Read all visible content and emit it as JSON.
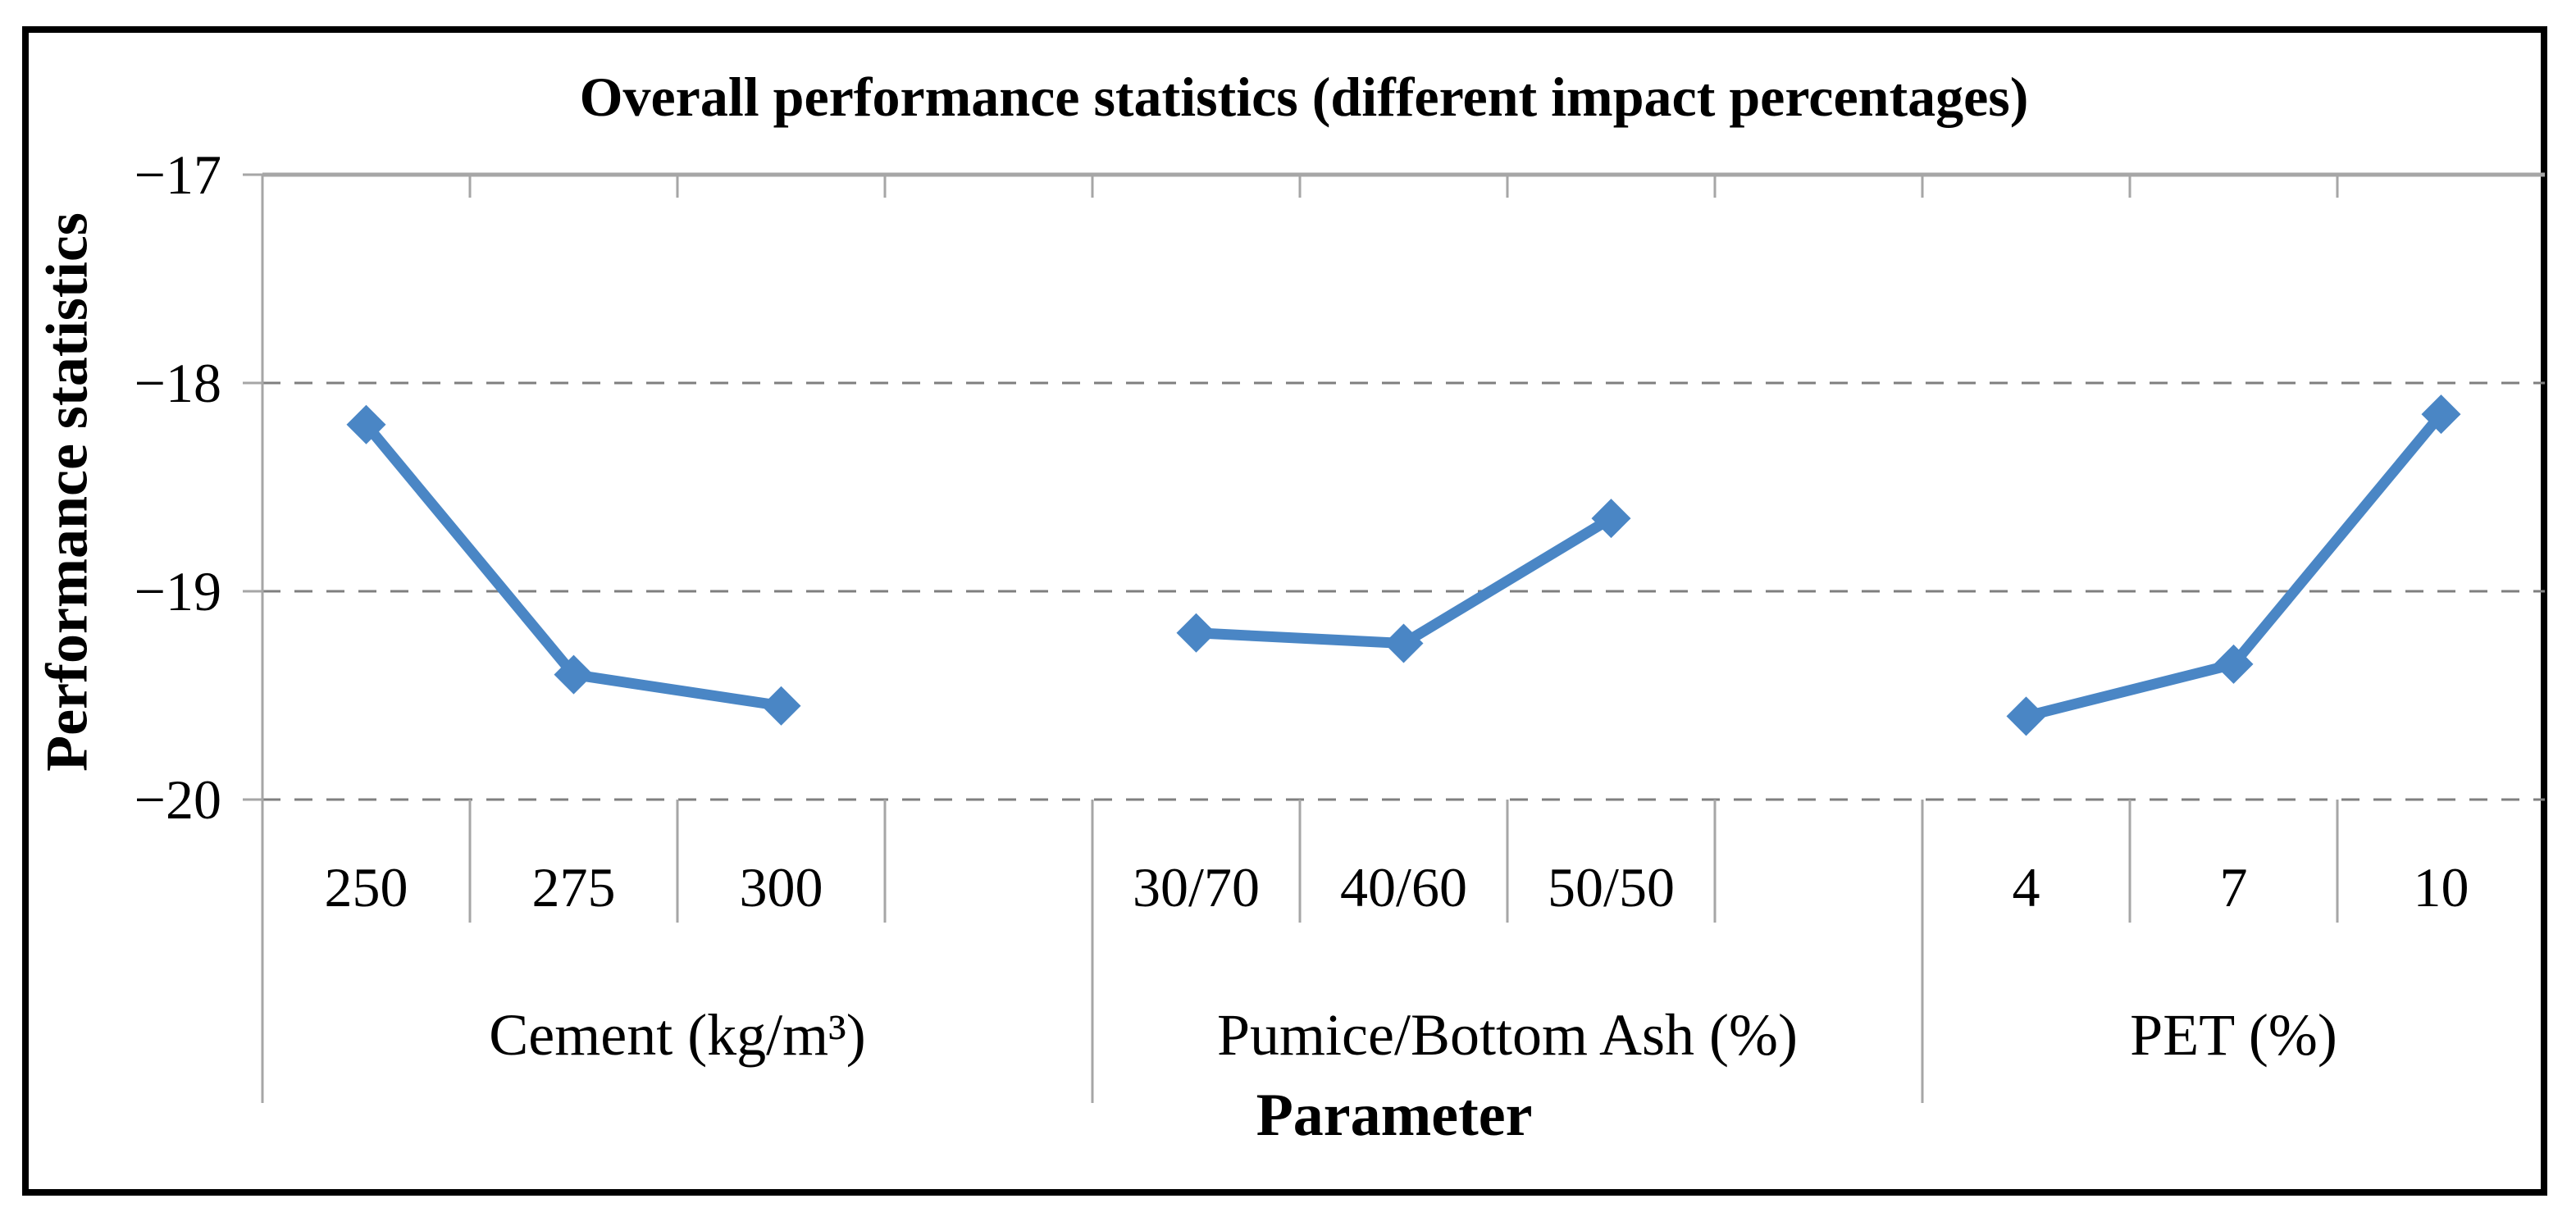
{
  "chart_data": {
    "type": "line",
    "title": "Overall performance statistics (different impact percentages)",
    "xlabel": "Parameter",
    "ylabel": "Performance statistics",
    "ylim": [
      -20,
      -17
    ],
    "y_tick_values": [
      -17,
      -18,
      -19,
      -20
    ],
    "y_tick_labels": [
      "−17",
      "−18",
      "−19",
      "−20"
    ],
    "grid": "horizontal-dashed",
    "legend": "none",
    "marker": "diamond",
    "line_color": "#4a86c5",
    "axis_color": "#a6a6a6",
    "grid_color": "#7f7f7f",
    "frame_color": "#000000",
    "groups": [
      {
        "label": "Cement (kg/m³)",
        "categories": [
          "250",
          "275",
          "300"
        ],
        "values": [
          -18.2,
          -19.4,
          -19.55
        ]
      },
      {
        "label": "Pumice/Bottom Ash (%)",
        "categories": [
          "30/70",
          "40/60",
          "50/50"
        ],
        "values": [
          -19.2,
          -19.25,
          -18.65
        ]
      },
      {
        "label": "PET (%)",
        "categories": [
          "4",
          "7",
          "10"
        ],
        "values": [
          -19.6,
          -19.35,
          -18.15
        ]
      }
    ]
  }
}
